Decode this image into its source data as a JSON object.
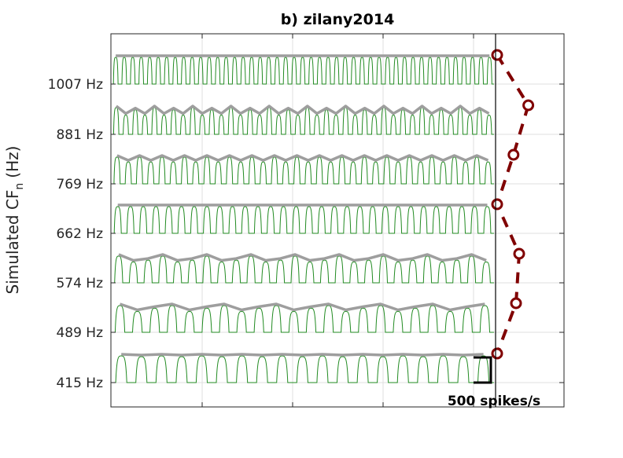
{
  "chart_data": {
    "type": "line",
    "title": "b) zilany2014",
    "ylabel": "Simulated CF",
    "ylabel_subscript": "n",
    "ylabel_unit": "(Hz)",
    "yticks": [
      "1007 Hz",
      "881 Hz",
      "769 Hz",
      "662 Hz",
      "574 Hz",
      "489 Hz",
      "415 Hz"
    ],
    "cf_hz": [
      1007,
      881,
      769,
      662,
      574,
      489,
      415
    ],
    "scale_bar_label": "500 spikes/s",
    "grid": true,
    "colors": {
      "response": "#228B22",
      "envelope": "#999999",
      "marker": "#800000",
      "axis": "#262626",
      "grid": "#dfdfdf"
    },
    "rows": [
      {
        "cf": "1007 Hz",
        "peaks": 45,
        "envelope_pattern": [
          1.0,
          1.0
        ]
      },
      {
        "cf": "881 Hz",
        "peaks": 40,
        "envelope_pattern": [
          1.0,
          0.72,
          0.92,
          0.72
        ]
      },
      {
        "cf": "769 Hz",
        "peaks": 34,
        "envelope_pattern": [
          1.0,
          0.82
        ]
      },
      {
        "cf": "662 Hz",
        "peaks": 30,
        "envelope_pattern": [
          1.0,
          1.0
        ]
      },
      {
        "cf": "574 Hz",
        "peaks": 26,
        "envelope_pattern": [
          1.0,
          0.78,
          0.85
        ]
      },
      {
        "cf": "489 Hz",
        "peaks": 22,
        "envelope_pattern": [
          1.0,
          0.78,
          0.9
        ]
      },
      {
        "cf": "415 Hz",
        "peaks": 19,
        "envelope_pattern": [
          1.0,
          0.97
        ]
      }
    ],
    "marker_offsets": [
      0.0,
      0.61,
      0.32,
      0.0,
      0.43,
      0.37,
      0.0
    ]
  }
}
